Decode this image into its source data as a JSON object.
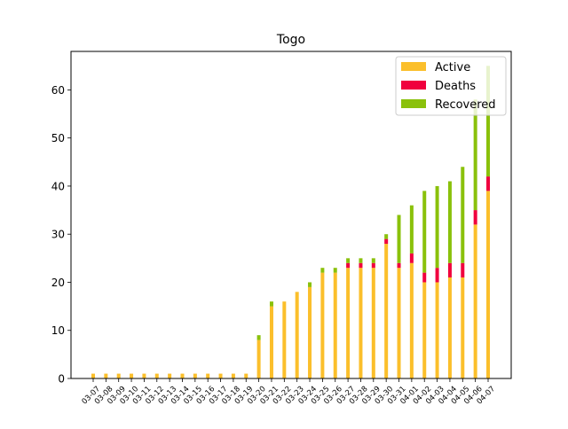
{
  "chart_data": {
    "type": "bar",
    "stacked": true,
    "title": "Togo",
    "xlabel": "",
    "ylabel": "",
    "categories": [
      "03-07",
      "03-08",
      "03-09",
      "03-10",
      "03-11",
      "03-12",
      "03-13",
      "03-14",
      "03-15",
      "03-16",
      "03-17",
      "03-18",
      "03-19",
      "03-20",
      "03-21",
      "03-22",
      "03-23",
      "03-24",
      "03-25",
      "03-26",
      "03-27",
      "03-28",
      "03-29",
      "03-30",
      "03-31",
      "04-01",
      "04-02",
      "04-03",
      "04-04",
      "04-05",
      "04-06",
      "04-07"
    ],
    "series": [
      {
        "name": "Active",
        "color": "#fbbf2b",
        "values": [
          1,
          1,
          1,
          1,
          1,
          1,
          1,
          1,
          1,
          1,
          1,
          1,
          1,
          8,
          15,
          16,
          18,
          19,
          22,
          22,
          23,
          23,
          23,
          28,
          23,
          24,
          20,
          20,
          21,
          21,
          32,
          39
        ]
      },
      {
        "name": "Deaths",
        "color": "#f0003e",
        "values": [
          0,
          0,
          0,
          0,
          0,
          0,
          0,
          0,
          0,
          0,
          0,
          0,
          0,
          0,
          0,
          0,
          0,
          0,
          0,
          0,
          1,
          1,
          1,
          1,
          1,
          2,
          2,
          3,
          3,
          3,
          3,
          3
        ]
      },
      {
        "name": "Recovered",
        "color": "#8ac10b",
        "values": [
          0,
          0,
          0,
          0,
          0,
          0,
          0,
          0,
          0,
          0,
          0,
          0,
          0,
          1,
          1,
          0,
          0,
          1,
          1,
          1,
          1,
          1,
          1,
          1,
          10,
          10,
          17,
          17,
          17,
          20,
          23,
          23
        ]
      }
    ],
    "ylim": [
      0,
      68
    ],
    "yticks": [
      0,
      10,
      20,
      30,
      40,
      50,
      60
    ],
    "grid": false,
    "legend_position": "top-right"
  }
}
